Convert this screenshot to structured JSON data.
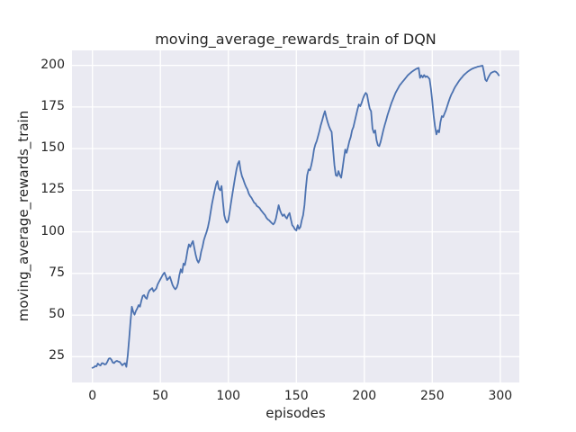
{
  "figure": {
    "title": "moving_average_rewards_train of DQN",
    "xlabel": "episodes",
    "ylabel": "moving_average_rewards_train"
  },
  "chart_data": {
    "type": "line",
    "title": "moving_average_rewards_train of DQN",
    "xlabel": "episodes",
    "ylabel": "moving_average_rewards_train",
    "xlim": [
      -15,
      314
    ],
    "ylim": [
      9.5,
      209
    ],
    "xticks": [
      0,
      50,
      100,
      150,
      200,
      250,
      300
    ],
    "yticks": [
      25,
      50,
      75,
      100,
      125,
      150,
      175,
      200
    ],
    "grid": true,
    "legend_position": "none",
    "plot_bg": "#eaeaf2",
    "grid_color": "#ffffff",
    "text_color": "#262626",
    "series": [
      {
        "name": "moving_average_rewards_train",
        "color": "#4c72b0",
        "x_start": 0,
        "x_step": 1,
        "y": [
          18.3,
          18.6,
          19.4,
          19.2,
          20.9,
          20.1,
          19.7,
          21.1,
          21.0,
          20.3,
          20.6,
          22.0,
          23.8,
          24.1,
          23.2,
          21.5,
          21.2,
          22.1,
          22.5,
          22.1,
          21.9,
          20.9,
          19.8,
          20.6,
          21.1,
          18.9,
          25.5,
          35.0,
          46.0,
          55.0,
          52.0,
          50.2,
          52.5,
          54.0,
          56.0,
          55.0,
          58.5,
          61.5,
          62.0,
          60.5,
          59.8,
          63.0,
          64.8,
          65.5,
          66.2,
          64.2,
          65.0,
          66.0,
          68.5,
          70.0,
          71.5,
          73.0,
          74.5,
          75.5,
          73.5,
          71.0,
          72.0,
          73.0,
          70.5,
          68.0,
          66.5,
          65.5,
          66.5,
          69.0,
          74.0,
          77.5,
          75.5,
          81.0,
          80.0,
          84.0,
          89.0,
          92.5,
          91.0,
          93.0,
          94.5,
          90.0,
          86.0,
          83.0,
          81.5,
          83.5,
          88.0,
          91.0,
          95.0,
          97.5,
          100.0,
          103.0,
          107.0,
          112.0,
          117.0,
          121.0,
          125.0,
          128.5,
          130.5,
          126.0,
          125.0,
          127.5,
          118.0,
          110.0,
          107.0,
          105.5,
          107.0,
          112.0,
          117.5,
          123.0,
          128.0,
          133.0,
          137.5,
          141.0,
          142.5,
          137.0,
          133.5,
          131.5,
          129.0,
          127.0,
          125.5,
          123.0,
          121.5,
          120.5,
          119.0,
          117.5,
          117.0,
          115.5,
          115.0,
          114.3,
          113.0,
          112.0,
          111.0,
          110.0,
          108.5,
          107.5,
          107.0,
          106.0,
          105.2,
          104.5,
          105.5,
          108.0,
          112.0,
          116.0,
          113.0,
          111.0,
          109.5,
          110.5,
          109.0,
          108.0,
          110.0,
          111.3,
          107.5,
          104.0,
          103.0,
          101.5,
          100.8,
          104.0,
          101.8,
          103.0,
          107.0,
          110.0,
          116.0,
          126.0,
          134.0,
          137.5,
          137.0,
          140.0,
          144.0,
          149.5,
          152.5,
          154.5,
          157.5,
          160.5,
          164.0,
          167.0,
          170.0,
          172.5,
          169.0,
          166.0,
          163.5,
          161.5,
          160.0,
          150.0,
          140.0,
          134.0,
          133.5,
          136.5,
          134.0,
          132.5,
          138.0,
          144.0,
          149.5,
          147.5,
          151.0,
          154.5,
          157.0,
          161.0,
          163.0,
          166.5,
          170.0,
          173.5,
          176.5,
          175.5,
          177.5,
          180.0,
          182.0,
          183.5,
          182.5,
          178.0,
          174.0,
          172.5,
          162.0,
          159.5,
          161.0,
          155.0,
          152.0,
          151.5,
          154.0,
          157.5,
          161.0,
          164.0,
          167.0,
          170.0,
          172.5,
          175.0,
          177.5,
          179.5,
          181.5,
          183.5,
          185.0,
          186.5,
          188.0,
          189.0,
          190.0,
          191.0,
          192.0,
          193.0,
          194.0,
          194.8,
          195.5,
          196.2,
          196.8,
          197.3,
          197.8,
          198.2,
          198.5,
          192.5,
          194.0,
          192.8,
          194.2,
          193.0,
          193.5,
          192.8,
          191.8,
          186.0,
          178.5,
          170.0,
          163.5,
          158.5,
          161.0,
          159.8,
          166.0,
          169.5,
          169.0,
          171.0,
          173.0,
          175.5,
          178.0,
          180.5,
          182.5,
          184.0,
          185.8,
          187.3,
          188.5,
          189.8,
          191.0,
          192.0,
          193.0,
          194.0,
          194.8,
          195.5,
          196.2,
          196.8,
          197.3,
          197.8,
          198.2,
          198.5,
          198.8,
          199.1,
          199.3,
          199.5,
          199.7,
          199.8,
          196.0,
          191.5,
          190.5,
          192.5,
          194.0,
          195.3,
          195.8,
          196.2,
          196.4,
          196.0,
          195.2,
          194.0
        ]
      }
    ]
  }
}
